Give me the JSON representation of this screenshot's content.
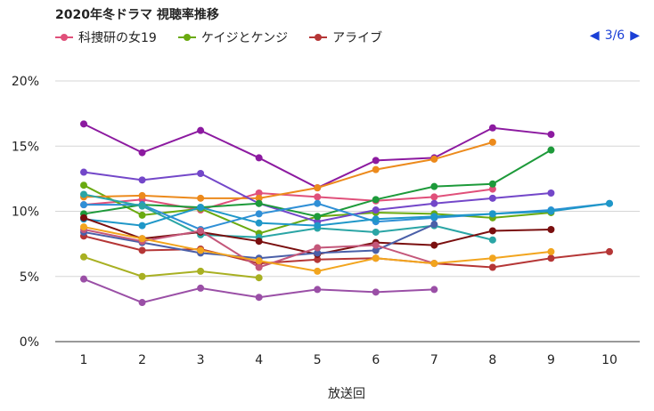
{
  "chart_data": {
    "type": "line",
    "title": "2020年冬ドラマ 視聴率推移",
    "xlabel": "放送回",
    "ylabel": "",
    "x": [
      1,
      2,
      3,
      4,
      5,
      6,
      7,
      8,
      9,
      10
    ],
    "ylim": [
      0,
      20
    ],
    "yticks": [
      "0%",
      "5%",
      "10%",
      "15%",
      "20%"
    ],
    "grid": true,
    "legend_position": "top-left",
    "pager": "3/6",
    "series": [
      {
        "name": "科捜研の女19",
        "color": "#e0507a",
        "values": [
          10.5,
          10.9,
          10.1,
          11.4,
          11.1,
          10.8,
          11.1,
          11.7,
          null,
          null
        ]
      },
      {
        "name": "ケイジとケンジ",
        "color": "#6aaa10",
        "values": [
          12.0,
          9.7,
          10.2,
          8.3,
          9.6,
          9.9,
          9.8,
          9.5,
          9.9,
          null
        ]
      },
      {
        "name": "アライブ",
        "color": "#b53636",
        "values": [
          8.1,
          7.0,
          7.1,
          6.0,
          6.3,
          6.4,
          6.0,
          5.7,
          6.4,
          6.9
        ]
      },
      {
        "name": "",
        "color": "#8c1aa0",
        "values": [
          16.7,
          14.5,
          16.2,
          14.1,
          11.8,
          13.9,
          14.1,
          16.4,
          15.9,
          null
        ]
      },
      {
        "name": "",
        "color": "#ec8a1c",
        "values": [
          11.1,
          11.2,
          11.0,
          11.0,
          11.8,
          13.2,
          14.0,
          15.3,
          null,
          null
        ]
      },
      {
        "name": "",
        "color": "#7347c9",
        "values": [
          13.0,
          12.4,
          12.9,
          10.6,
          9.2,
          10.1,
          10.6,
          11.0,
          11.4,
          null
        ]
      },
      {
        "name": "",
        "color": "#1d9a3a",
        "values": [
          9.8,
          10.5,
          10.3,
          10.6,
          9.6,
          10.9,
          11.9,
          12.1,
          14.7,
          null
        ]
      },
      {
        "name": "",
        "color": "#2f8fd6",
        "values": [
          10.5,
          10.5,
          8.6,
          9.8,
          10.6,
          9.2,
          9.5,
          9.8,
          10.1,
          10.6
        ]
      },
      {
        "name": "",
        "color": "#2aa5a5",
        "values": [
          11.3,
          10.4,
          8.2,
          8.0,
          8.7,
          8.4,
          8.9,
          7.8,
          null,
          null
        ]
      },
      {
        "name": "",
        "color": "#1f97c8",
        "values": [
          9.4,
          8.9,
          10.3,
          9.1,
          8.9,
          9.4,
          9.6,
          9.8,
          10.0,
          10.6
        ]
      },
      {
        "name": "",
        "color": "#7a0f0f",
        "values": [
          9.5,
          7.9,
          8.4,
          7.7,
          6.7,
          7.6,
          7.4,
          8.5,
          8.6,
          null
        ]
      },
      {
        "name": "",
        "color": "#4a5fa8",
        "values": [
          8.4,
          7.6,
          6.8,
          6.4,
          6.8,
          7.0,
          9.0,
          null,
          null,
          null
        ]
      },
      {
        "name": "",
        "color": "#c4577a",
        "values": [
          8.6,
          7.7,
          8.5,
          5.7,
          7.2,
          7.4,
          6.0,
          null,
          null,
          null
        ]
      },
      {
        "name": "",
        "color": "#f2a51e",
        "values": [
          8.8,
          7.9,
          7.0,
          6.2,
          5.4,
          6.4,
          6.0,
          6.4,
          6.9,
          null
        ]
      },
      {
        "name": "",
        "color": "#a8b022",
        "values": [
          6.5,
          5.0,
          5.4,
          4.9,
          null,
          null,
          null,
          null,
          null,
          null
        ]
      },
      {
        "name": "",
        "color": "#9a4fa6",
        "values": [
          4.8,
          3.0,
          4.1,
          3.4,
          4.0,
          3.8,
          4.0,
          null,
          null,
          null
        ]
      }
    ]
  },
  "icons": {
    "prev": "prev-triangle-icon",
    "next": "next-triangle-icon"
  }
}
